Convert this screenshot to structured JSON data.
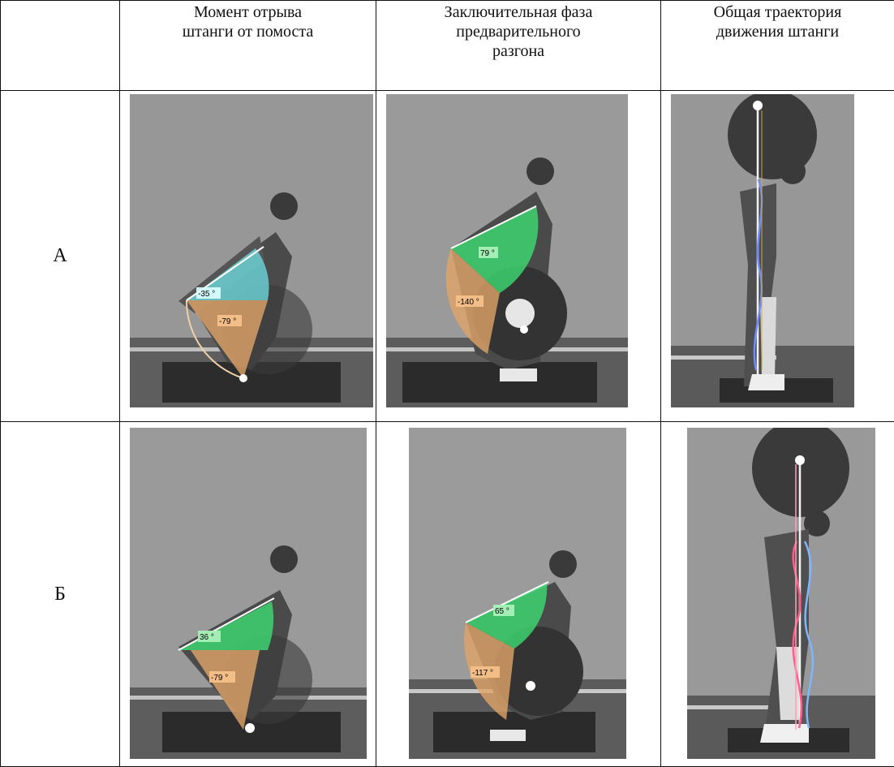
{
  "header": {
    "corner": "",
    "col1": "Момент отрыва\nштанги от помоста",
    "col2": "Заключительная фаза\nпредварительного\nразгона",
    "col3": "Общая траектория\nдвижения штанги"
  },
  "rows": [
    {
      "label": "А",
      "col1_angles": {
        "upper": "-35 °",
        "lower": "-79 °"
      },
      "col2_angles": {
        "upper": "79 °",
        "lower": "-140 °"
      }
    },
    {
      "label": "Б",
      "col1_angles": {
        "upper": "36 °",
        "lower": "-79 °"
      },
      "col2_angles": {
        "upper": "65 °",
        "lower": "-117 °"
      }
    }
  ],
  "colors": {
    "photo_bg": "#8e8e8e",
    "angle_cyan": "#6fe0e6",
    "angle_green": "#3ddc72",
    "angle_orange": "#e0a468",
    "trajectory_blue": "#6f8cff",
    "trajectory_pink": "#ff5c8a",
    "bar_path_white": "#f2f2f2"
  }
}
